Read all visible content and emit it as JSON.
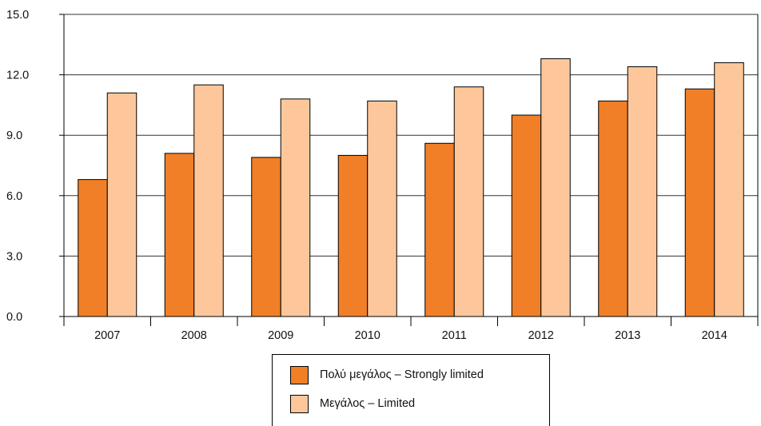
{
  "chart_data": {
    "type": "bar",
    "title": "",
    "xlabel": "",
    "ylabel": "",
    "categories": [
      "2007",
      "2008",
      "2009",
      "2010",
      "2011",
      "2012",
      "2013",
      "2014"
    ],
    "series": [
      {
        "name": "Πολύ μεγάλος – Strongly limited",
        "color": "#f07f27",
        "values": [
          6.8,
          8.1,
          7.9,
          8.0,
          8.6,
          10.0,
          10.7,
          11.3
        ]
      },
      {
        "name": "Μεγάλος – Limited",
        "color": "#fdc79b",
        "values": [
          11.1,
          11.5,
          10.8,
          10.7,
          11.4,
          12.8,
          12.4,
          12.6
        ]
      }
    ],
    "ylim": [
      0,
      15
    ],
    "yticks": [
      "0.0",
      "3.0",
      "6.0",
      "9.0",
      "12.0",
      "15.0"
    ],
    "grid": true,
    "legend_position": "bottom"
  }
}
